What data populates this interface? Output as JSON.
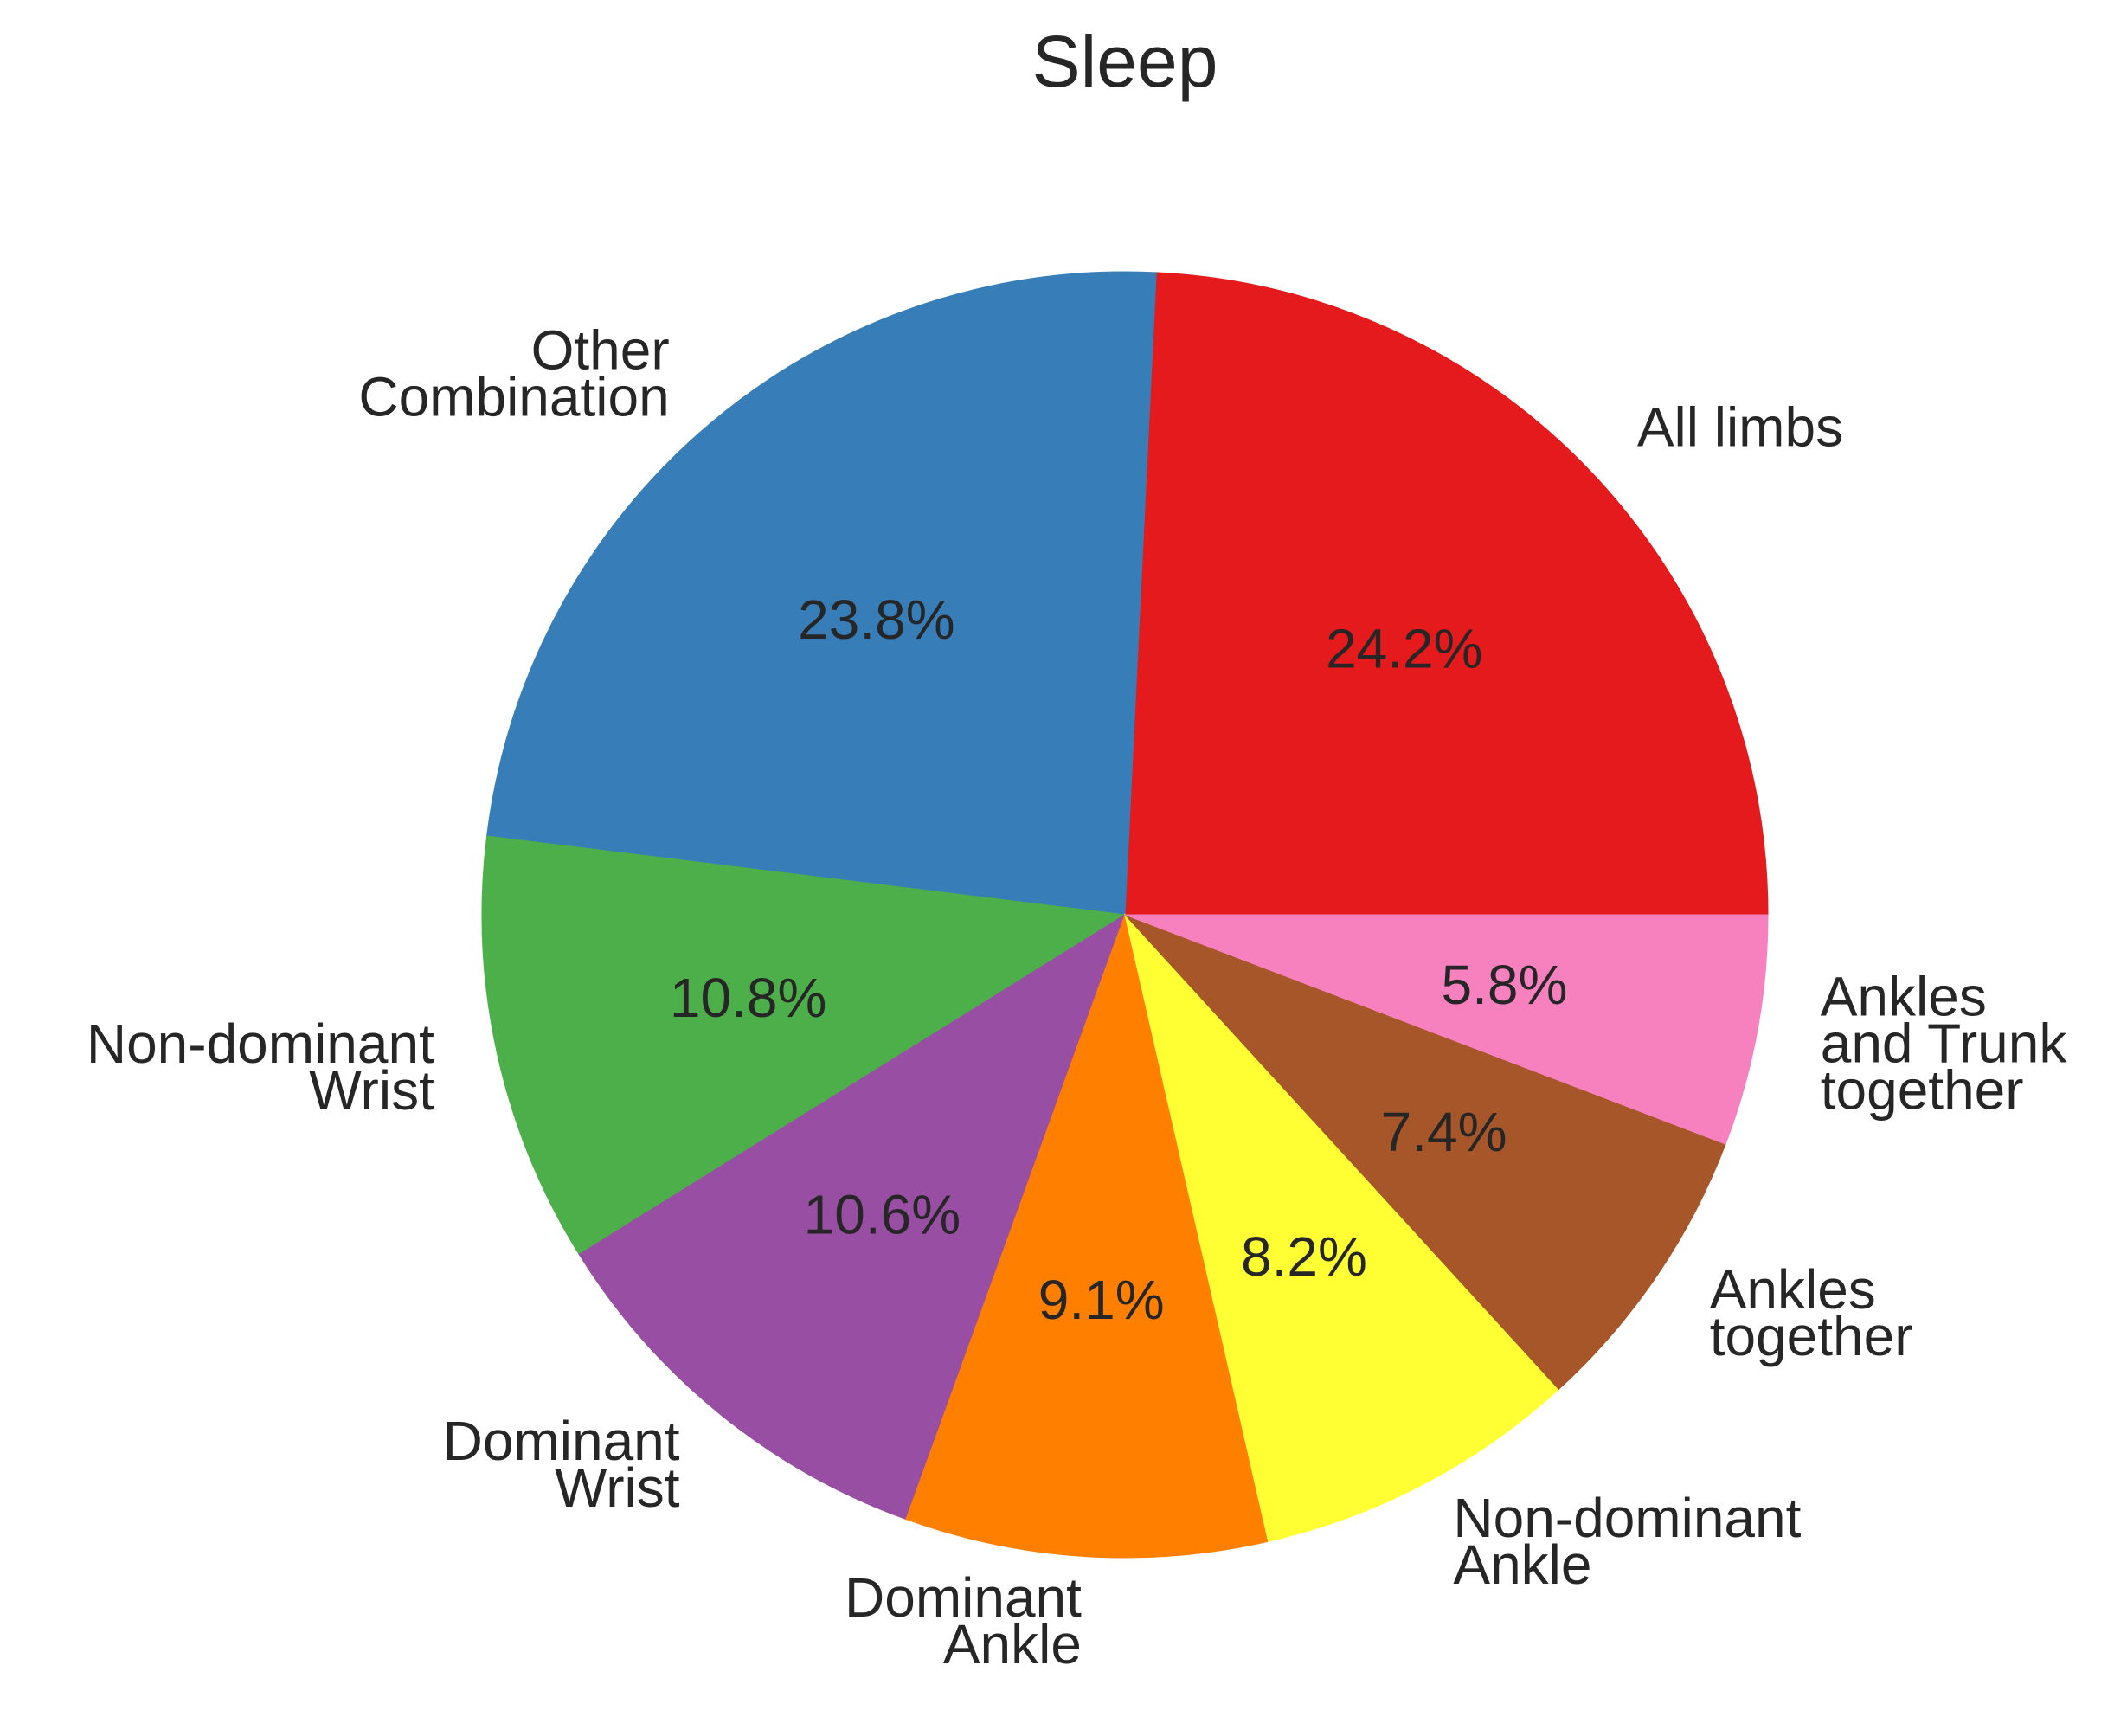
{
  "chart_data": {
    "type": "pie",
    "title": "Sleep",
    "start_angle_deg": 0,
    "direction": "counterclockwise",
    "slices": [
      {
        "label": [
          "All limbs"
        ],
        "value": 24.2,
        "pct_text": "24.2%",
        "color": "#e41a1c"
      },
      {
        "label": [
          "Other",
          "Combination"
        ],
        "value": 23.8,
        "pct_text": "23.8%",
        "color": "#377eb8"
      },
      {
        "label": [
          "Non-dominant",
          "Wrist"
        ],
        "value": 10.8,
        "pct_text": "10.8%",
        "color": "#4daf4a"
      },
      {
        "label": [
          "Dominant",
          "Wrist"
        ],
        "value": 10.6,
        "pct_text": "10.6%",
        "color": "#984ea3"
      },
      {
        "label": [
          "Dominant",
          "Ankle"
        ],
        "value": 9.1,
        "pct_text": "9.1%",
        "color": "#ff7f00"
      },
      {
        "label": [
          "Non-dominant",
          "Ankle"
        ],
        "value": 8.2,
        "pct_text": "8.2%",
        "color": "#ffff33"
      },
      {
        "label": [
          "Ankles",
          "together"
        ],
        "value": 7.4,
        "pct_text": "7.4%",
        "color": "#a65628"
      },
      {
        "label": [
          "Ankles",
          "and Trunk",
          "together"
        ],
        "value": 5.8,
        "pct_text": "5.8%",
        "color": "#f781bf"
      }
    ]
  }
}
